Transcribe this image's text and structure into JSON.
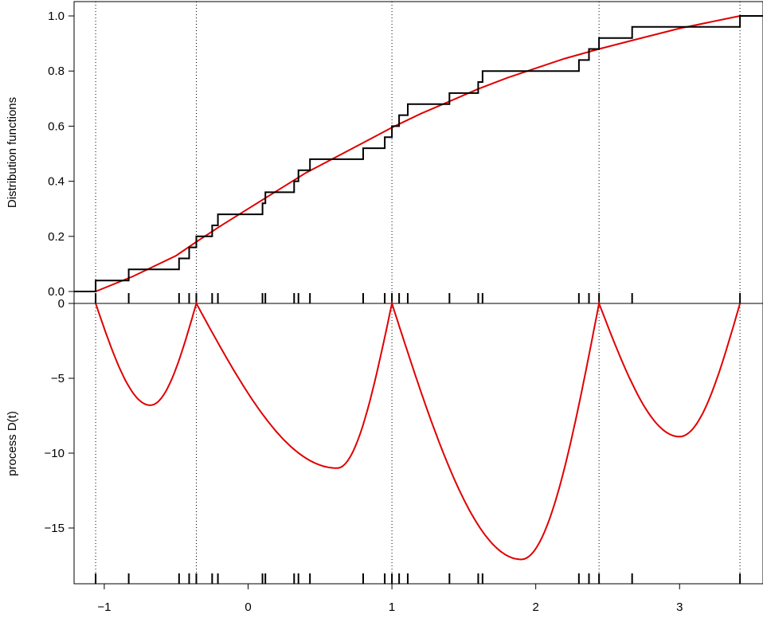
{
  "chart_data": [
    {
      "type": "line",
      "panel": "top",
      "ylabel": "Distribution functions",
      "xlim": [
        -1.21,
        3.58
      ],
      "ylim": [
        0,
        1.0
      ],
      "yticks": [
        0.0,
        0.2,
        0.4,
        0.6,
        0.8,
        1.0
      ],
      "ytick_labels": [
        "0.0",
        "0.2",
        "0.4",
        "0.6",
        "0.8",
        "1.0"
      ],
      "series": [
        {
          "kind": "empirical-step",
          "color": "#000000",
          "sample": [
            -1.06,
            -0.83,
            -0.48,
            -0.41,
            -0.36,
            -0.25,
            -0.21,
            0.1,
            0.12,
            0.32,
            0.35,
            0.43,
            0.8,
            0.95,
            1.0,
            1.05,
            1.11,
            1.4,
            1.6,
            1.63,
            2.3,
            2.37,
            2.44,
            2.67,
            3.42
          ]
        },
        {
          "kind": "fitted-cdf",
          "color": "#e00000",
          "x": [
            -1.06,
            -0.8,
            -0.5,
            -0.36,
            -0.2,
            0.0,
            0.2,
            0.4,
            0.6,
            0.8,
            1.0,
            1.2,
            1.4,
            1.6,
            1.8,
            2.0,
            2.2,
            2.44,
            2.7,
            3.0,
            3.42
          ],
          "y": [
            0.0,
            0.055,
            0.13,
            0.18,
            0.235,
            0.3,
            0.365,
            0.43,
            0.485,
            0.54,
            0.595,
            0.645,
            0.69,
            0.735,
            0.775,
            0.81,
            0.845,
            0.88,
            0.915,
            0.955,
            1.0
          ]
        }
      ]
    },
    {
      "type": "line",
      "panel": "bottom",
      "ylabel": "process D(t)",
      "xlim": [
        -1.21,
        3.58
      ],
      "ylim": [
        -18.5,
        0
      ],
      "yticks": [
        0,
        -5,
        -10,
        -15
      ],
      "ytick_labels": [
        "0",
        "−5",
        "−10",
        "−15"
      ],
      "xticks": [
        -1,
        0,
        1,
        2,
        3
      ],
      "xtick_labels": [
        "−1",
        "0",
        "1",
        "2",
        "3"
      ],
      "vlines": [
        -1.06,
        -0.36,
        1.0,
        2.44,
        3.42
      ],
      "series": [
        {
          "kind": "process",
          "color": "#e00000",
          "segments": [
            {
              "a": -1.06,
              "b": -0.36,
              "min": -6.8,
              "min_x": -0.68
            },
            {
              "a": -0.36,
              "b": 1.0,
              "min": -11.0,
              "min_x": 0.62
            },
            {
              "a": 1.0,
              "b": 2.44,
              "min": -17.1,
              "min_x": 1.9
            },
            {
              "a": 2.44,
              "b": 3.42,
              "min": -8.9,
              "min_x": 3.0
            }
          ]
        }
      ],
      "rug": [
        -1.06,
        -0.83,
        -0.48,
        -0.41,
        -0.36,
        -0.25,
        -0.21,
        0.1,
        0.12,
        0.32,
        0.35,
        0.43,
        0.8,
        0.95,
        1.0,
        1.05,
        1.11,
        1.4,
        1.6,
        1.63,
        2.3,
        2.37,
        2.44,
        2.67,
        3.42
      ]
    }
  ]
}
